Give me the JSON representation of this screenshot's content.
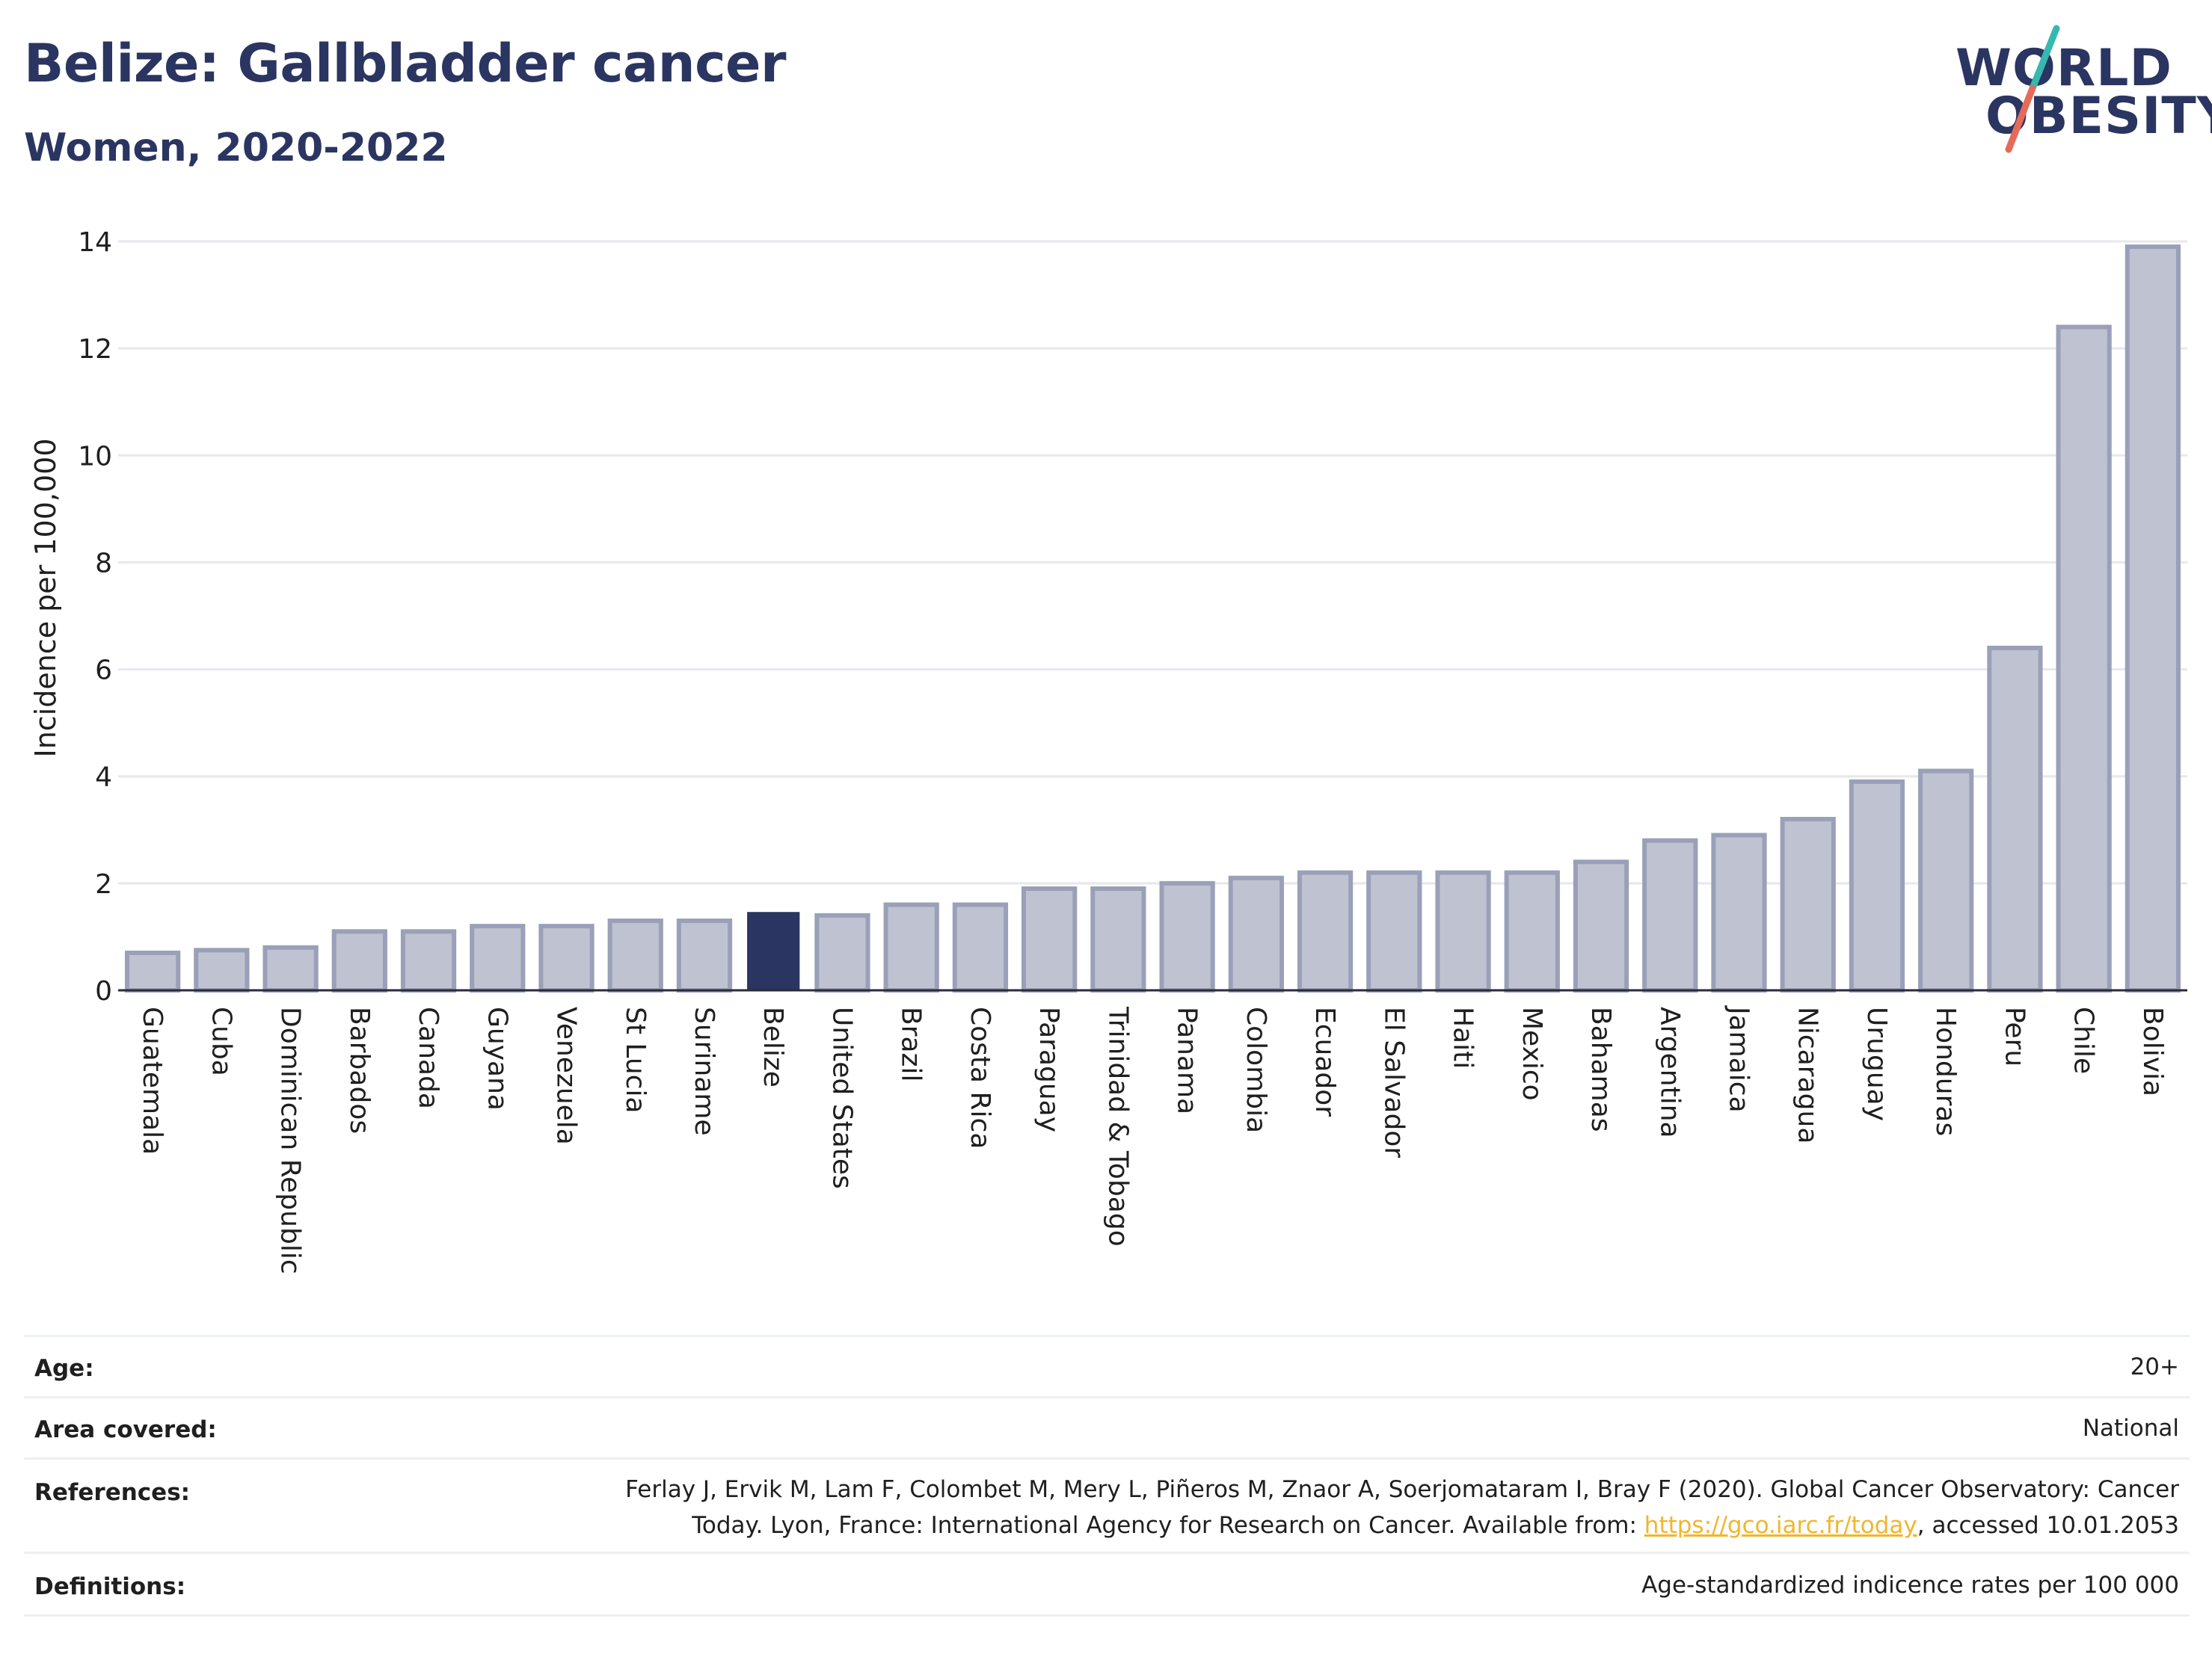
{
  "header": {
    "title": "Belize: Gallbladder cancer",
    "subtitle": "Women, 2020-2022"
  },
  "logo": {
    "line1": "WORLD",
    "line2": "OBESITY",
    "slash_colors": [
      "#35b8b0",
      "#e66a5a"
    ]
  },
  "chart_data": {
    "type": "bar",
    "ylabel": "Incidence per 100,000",
    "xlabel": "",
    "ylim": [
      0,
      14
    ],
    "yticks": [
      0,
      2,
      4,
      6,
      8,
      10,
      12,
      14
    ],
    "grid": true,
    "highlight": "Belize",
    "colors": {
      "bar": "#bfc3d1",
      "bar_border": "#9aa0b8",
      "highlight": "#2b3561",
      "grid": "#e6e8ee",
      "axis": "#2b2b3a"
    },
    "categories": [
      "Guatemala",
      "Cuba",
      "Dominican Republic",
      "Barbados",
      "Canada",
      "Guyana",
      "Venezuela",
      "St Lucia",
      "Suriname",
      "Belize",
      "United States",
      "Brazil",
      "Costa Rica",
      "Paraguay",
      "Trinidad & Tobago",
      "Panama",
      "Colombia",
      "Ecuador",
      "El Salvador",
      "Haiti",
      "Mexico",
      "Bahamas",
      "Argentina",
      "Jamaica",
      "Nicaragua",
      "Uruguay",
      "Honduras",
      "Peru",
      "Chile",
      "Bolivia"
    ],
    "values": [
      0.7,
      0.75,
      0.8,
      1.1,
      1.1,
      1.2,
      1.2,
      1.3,
      1.3,
      1.45,
      1.4,
      1.6,
      1.6,
      1.9,
      1.9,
      2.0,
      2.1,
      2.2,
      2.2,
      2.2,
      2.2,
      2.4,
      2.8,
      2.9,
      3.2,
      3.9,
      4.1,
      6.4,
      12.4,
      13.9
    ]
  },
  "meta": [
    {
      "label": "Age:",
      "value": "20+"
    },
    {
      "label": "Area covered:",
      "value": "National"
    },
    {
      "label": "References:",
      "value_line1": "Ferlay J, Ervik M, Lam F, Colombet M, Mery L, Piñeros M, Znaor A, Soerjomataram I, Bray F (2020). Global Cancer Observatory: Cancer",
      "value_line2_pre": "Today. Lyon, France: International Agency for Research on Cancer. Available from: ",
      "link": "https://gco.iarc.fr/today",
      "value_line2_post": ", accessed 10.01.2053"
    },
    {
      "label": "Definitions:",
      "value": "Age-standardized indicence rates per 100 000"
    }
  ]
}
